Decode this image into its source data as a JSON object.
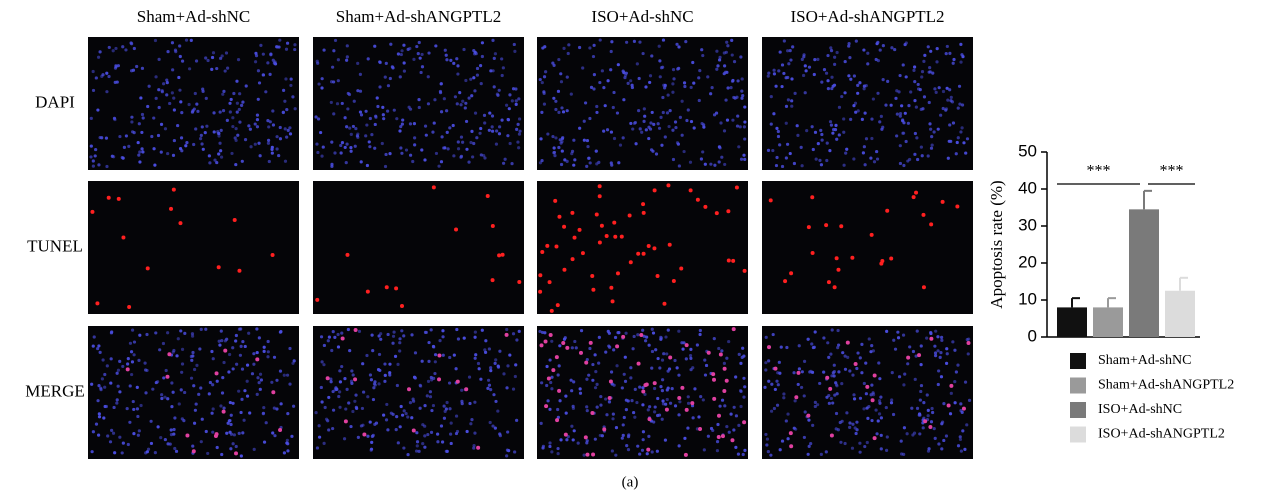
{
  "figure": {
    "columns": [
      "Sham+Ad-shNC",
      "Sham+Ad-shANGPTL2",
      "ISO+Ad-shNC",
      "ISO+Ad-shANGPTL2"
    ],
    "rows": [
      "DAPI",
      "TUNEL",
      "MERGE"
    ],
    "caption": "(a)"
  },
  "chart_data": {
    "type": "bar",
    "y_label": "Apoptosis rate (%)",
    "categories": [
      "Sham+Ad-shNC",
      "Sham+Ad-shANGPTL2",
      "ISO+Ad-shNC",
      "ISO+Ad-shANGPTL2"
    ],
    "values": [
      8,
      8,
      34.5,
      12.5
    ],
    "errors": [
      2.5,
      2.5,
      5,
      3.5
    ],
    "colors": [
      "#111111",
      "#9a9a9a",
      "#7a7a7a",
      "#dcdcdc"
    ],
    "ylim": [
      0,
      50
    ],
    "yticks": [
      0,
      10,
      20,
      30,
      40,
      50
    ],
    "annotations": [
      "***",
      "***"
    ],
    "legend": "bottom"
  }
}
